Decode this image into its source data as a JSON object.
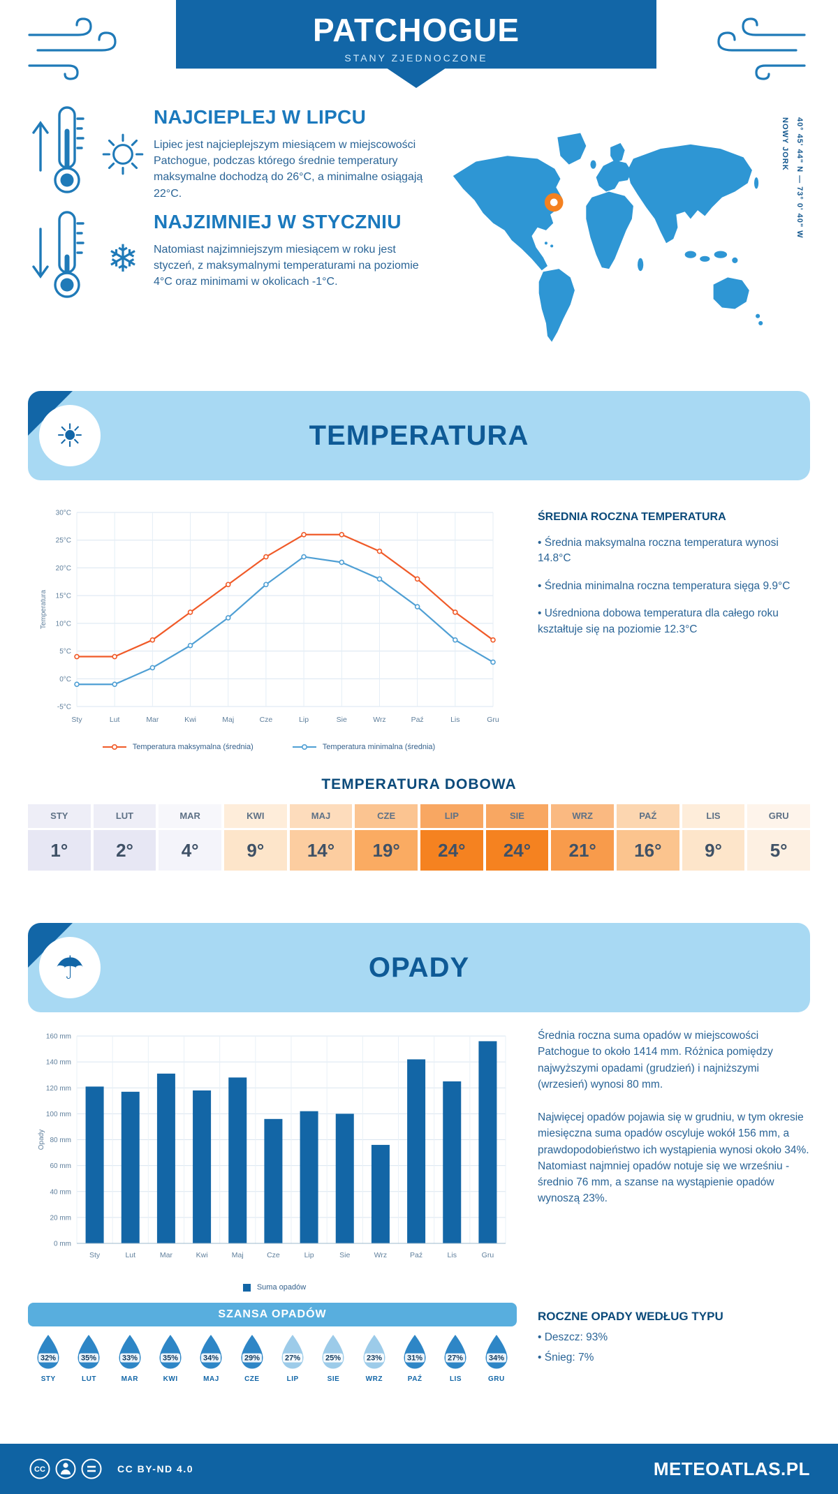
{
  "header": {
    "title": "PATCHOGUE",
    "subtitle": "STANY ZJEDNOCZONE"
  },
  "location": {
    "coordinates": "40° 45' 44\" N — 73° 0' 40\" W",
    "region": "NOWY JORK"
  },
  "highlights": {
    "warmest": {
      "title": "NAJCIEPLEJ W LIPCU",
      "text": "Lipiec jest najcieplejszym miesiącem w miejscowości Patchogue, podczas którego średnie temperatury maksymalne dochodzą do 26°C, a minimalne osiągają 22°C."
    },
    "coldest": {
      "title": "NAJZIMNIEJ W STYCZNIU",
      "text": "Natomiast najzimniejszym miesiącem w roku jest styczeń, z maksymalnymi temperaturami na poziomie 4°C oraz minimami w okolicach -1°C."
    }
  },
  "temperature": {
    "section_title": "TEMPERATURA",
    "annual_heading": "ŚREDNIA ROCZNA TEMPERATURA",
    "annual_bullets": [
      "• Średnia maksymalna roczna temperatura wynosi 14.8°C",
      "• Średnia minimalna roczna temperatura sięga 9.9°C",
      "• Uśredniona dobowa temperatura dla całego roku kształtuje się na poziomie 12.3°C"
    ],
    "daily_title": "TEMPERATURA DOBOWA",
    "daily_months": [
      "STY",
      "LUT",
      "MAR",
      "KWI",
      "MAJ",
      "CZE",
      "LIP",
      "SIE",
      "WRZ",
      "PAŹ",
      "LIS",
      "GRU"
    ],
    "daily_values": [
      "1°",
      "2°",
      "4°",
      "9°",
      "14°",
      "19°",
      "24°",
      "24°",
      "21°",
      "16°",
      "9°",
      "5°"
    ],
    "daily_colors": [
      "#e7e7f4",
      "#e7e7f4",
      "#f4f4fa",
      "#fde5ca",
      "#fccda0",
      "#faab62",
      "#f58220",
      "#f58220",
      "#f89b4b",
      "#fbc48e",
      "#fde5ca",
      "#fdf0e2"
    ]
  },
  "precipitation": {
    "section_title": "OPADY",
    "paragraphs": [
      "Średnia roczna suma opadów w miejscowości Patchogue to około 1414 mm. Różnica pomiędzy najwyższymi opadami (grudzień) i najniższymi (wrzesień) wynosi 80 mm.",
      "Najwięcej opadów pojawia się w grudniu, w tym okresie miesięczna suma opadów oscyluje wokół 156 mm, a prawdopodobieństwo ich wystąpienia wynosi około 34%. Natomiast najmniej opadów notuje się we wrześniu - średnio 76 mm, a szanse na wystąpienie opadów wynoszą 23%."
    ],
    "chance_title": "SZANSA OPADÓW",
    "chance_months": [
      "STY",
      "LUT",
      "MAR",
      "KWI",
      "MAJ",
      "CZE",
      "LIP",
      "SIE",
      "WRZ",
      "PAŹ",
      "LIS",
      "GRU"
    ],
    "chance_values": [
      "32%",
      "35%",
      "33%",
      "35%",
      "34%",
      "29%",
      "27%",
      "25%",
      "23%",
      "31%",
      "27%",
      "34%"
    ],
    "chance_light": [
      false,
      false,
      false,
      false,
      false,
      false,
      true,
      true,
      true,
      false,
      false,
      false
    ],
    "type_heading": "ROCZNE OPADY WEDŁUG TYPU",
    "type_bullets": [
      "• Deszcz: 93%",
      "• Śnieg: 7%"
    ]
  },
  "footer": {
    "license": "CC BY-ND 4.0",
    "brand": "METEOATLAS.PL"
  },
  "colors": {
    "primary_blue": "#1266a7",
    "light_band_blue": "#a8d9f3",
    "map_blue": "#2e96d4",
    "marker_orange": "#f48120",
    "max_temp_line": "#f05a28",
    "min_temp_line": "#4f9fd4",
    "bar_blue": "#1366a6"
  },
  "chart_data": [
    {
      "type": "line",
      "title": "Średnie temperatury miesięczne",
      "categories": [
        "Sty",
        "Lut",
        "Mar",
        "Kwi",
        "Maj",
        "Cze",
        "Lip",
        "Sie",
        "Wrz",
        "Paź",
        "Lis",
        "Gru"
      ],
      "series": [
        {
          "name": "Temperatura maksymalna (średnia)",
          "color": "#f05a28",
          "values": [
            4,
            4,
            7,
            12,
            17,
            22,
            26,
            26,
            23,
            18,
            12,
            7
          ]
        },
        {
          "name": "Temperatura minimalna (średnia)",
          "color": "#4f9fd4",
          "values": [
            -1,
            -1,
            2,
            6,
            11,
            17,
            22,
            21,
            18,
            13,
            7,
            3
          ]
        }
      ],
      "xlabel": "",
      "ylabel": "Temperatura",
      "ylim": [
        -5,
        30
      ],
      "ytick_step": 5,
      "ytick_suffix": "°C",
      "grid": true,
      "legend_position": "bottom"
    },
    {
      "type": "bar",
      "title": "Miesięczna suma opadów (mm)",
      "categories": [
        "Sty",
        "Lut",
        "Mar",
        "Kwi",
        "Maj",
        "Cze",
        "Lip",
        "Sie",
        "Wrz",
        "Paź",
        "Lis",
        "Gru"
      ],
      "values": [
        121,
        117,
        131,
        118,
        128,
        96,
        102,
        100,
        76,
        142,
        125,
        156
      ],
      "xlabel": "",
      "ylabel": "Opady",
      "ylim": [
        0,
        160
      ],
      "ytick_step": 20,
      "ytick_suffix": " mm",
      "bar_color": "#1366a6",
      "legend": "Suma opadów",
      "grid": true,
      "legend_position": "bottom"
    }
  ]
}
